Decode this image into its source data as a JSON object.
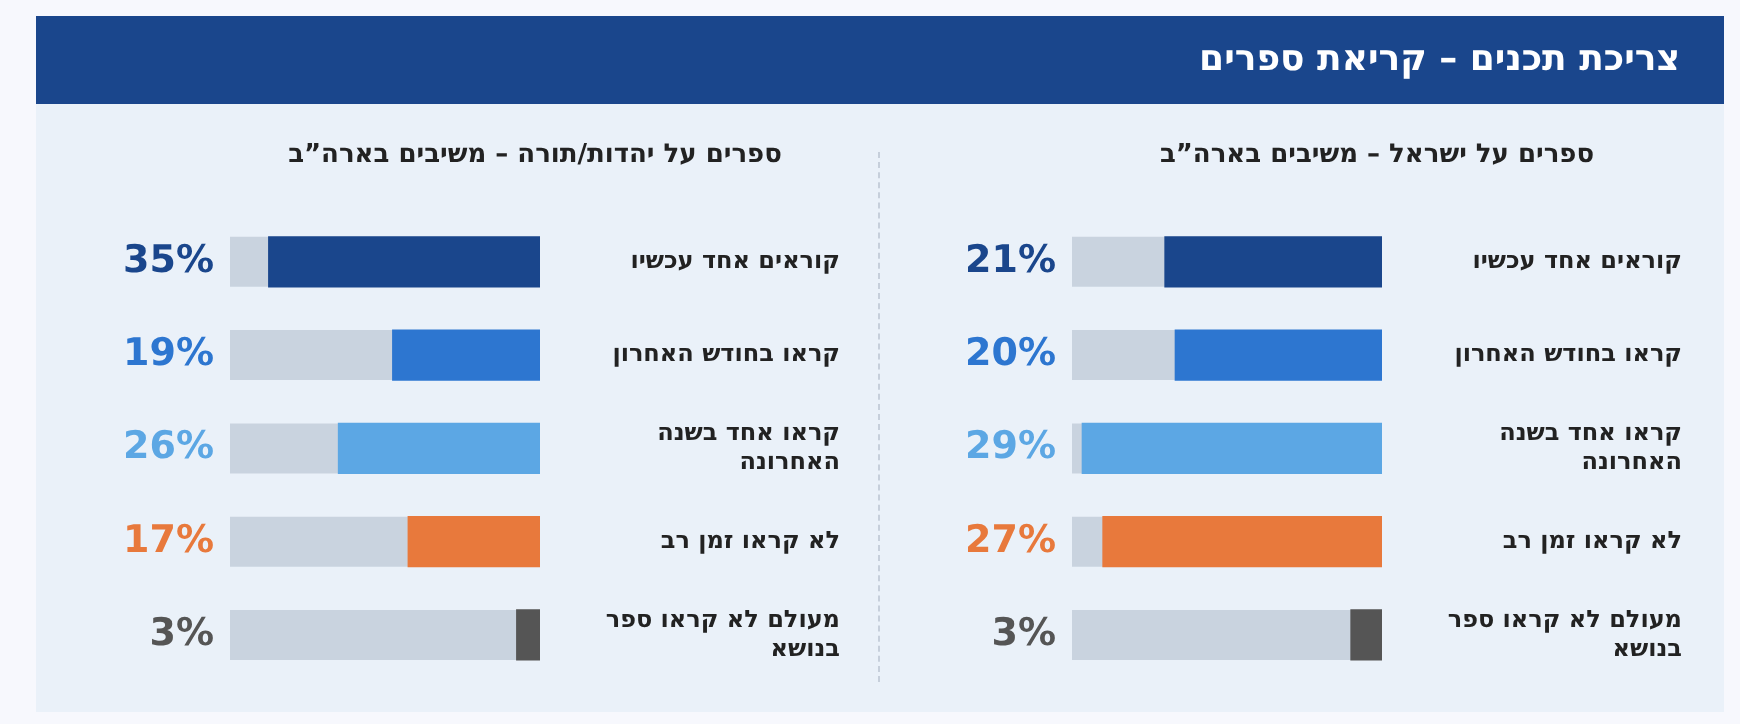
{
  "chart_data": [
    {
      "type": "bar",
      "orientation": "horizontal",
      "title": "צריכת תכנים – קריאת ספרים",
      "subtitle": "ספרים על ישראל – משיבים בארה”ב",
      "categories": [
        "קוראים אחד עכשיו",
        "קראו בחודש האחרון",
        "קראו אחד בשנה האחרונה",
        "לא קראו זמן רב",
        "מעולם לא קראו ספר בנושא"
      ],
      "values": [
        21,
        20,
        29,
        27,
        3
      ],
      "value_labels": [
        "21%",
        "20%",
        "29%",
        "27%",
        "3%"
      ],
      "colors": [
        "#1a468c",
        "#2d76d0",
        "#5ca7e4",
        "#e8793c",
        "#555555"
      ],
      "tick_labels": "y"
    },
    {
      "type": "bar",
      "orientation": "horizontal",
      "subtitle": "ספרים על יהדות/תורה – משיבים בארה”ב",
      "categories": [
        "קוראים אחד עכשיו",
        "קראו בחודש האחרון",
        "קראו אחד בשנה האחרונה",
        "לא קראו זמן רב",
        "מעולם לא קראו ספר בנושא"
      ],
      "values": [
        35,
        19,
        26,
        17,
        3
      ],
      "value_labels": [
        "35%",
        "19%",
        "26%",
        "17%",
        "3%"
      ],
      "colors": [
        "#1a468c",
        "#2d76d0",
        "#5ca7e4",
        "#e8793c",
        "#555555"
      ],
      "tick_labels": "y"
    }
  ]
}
